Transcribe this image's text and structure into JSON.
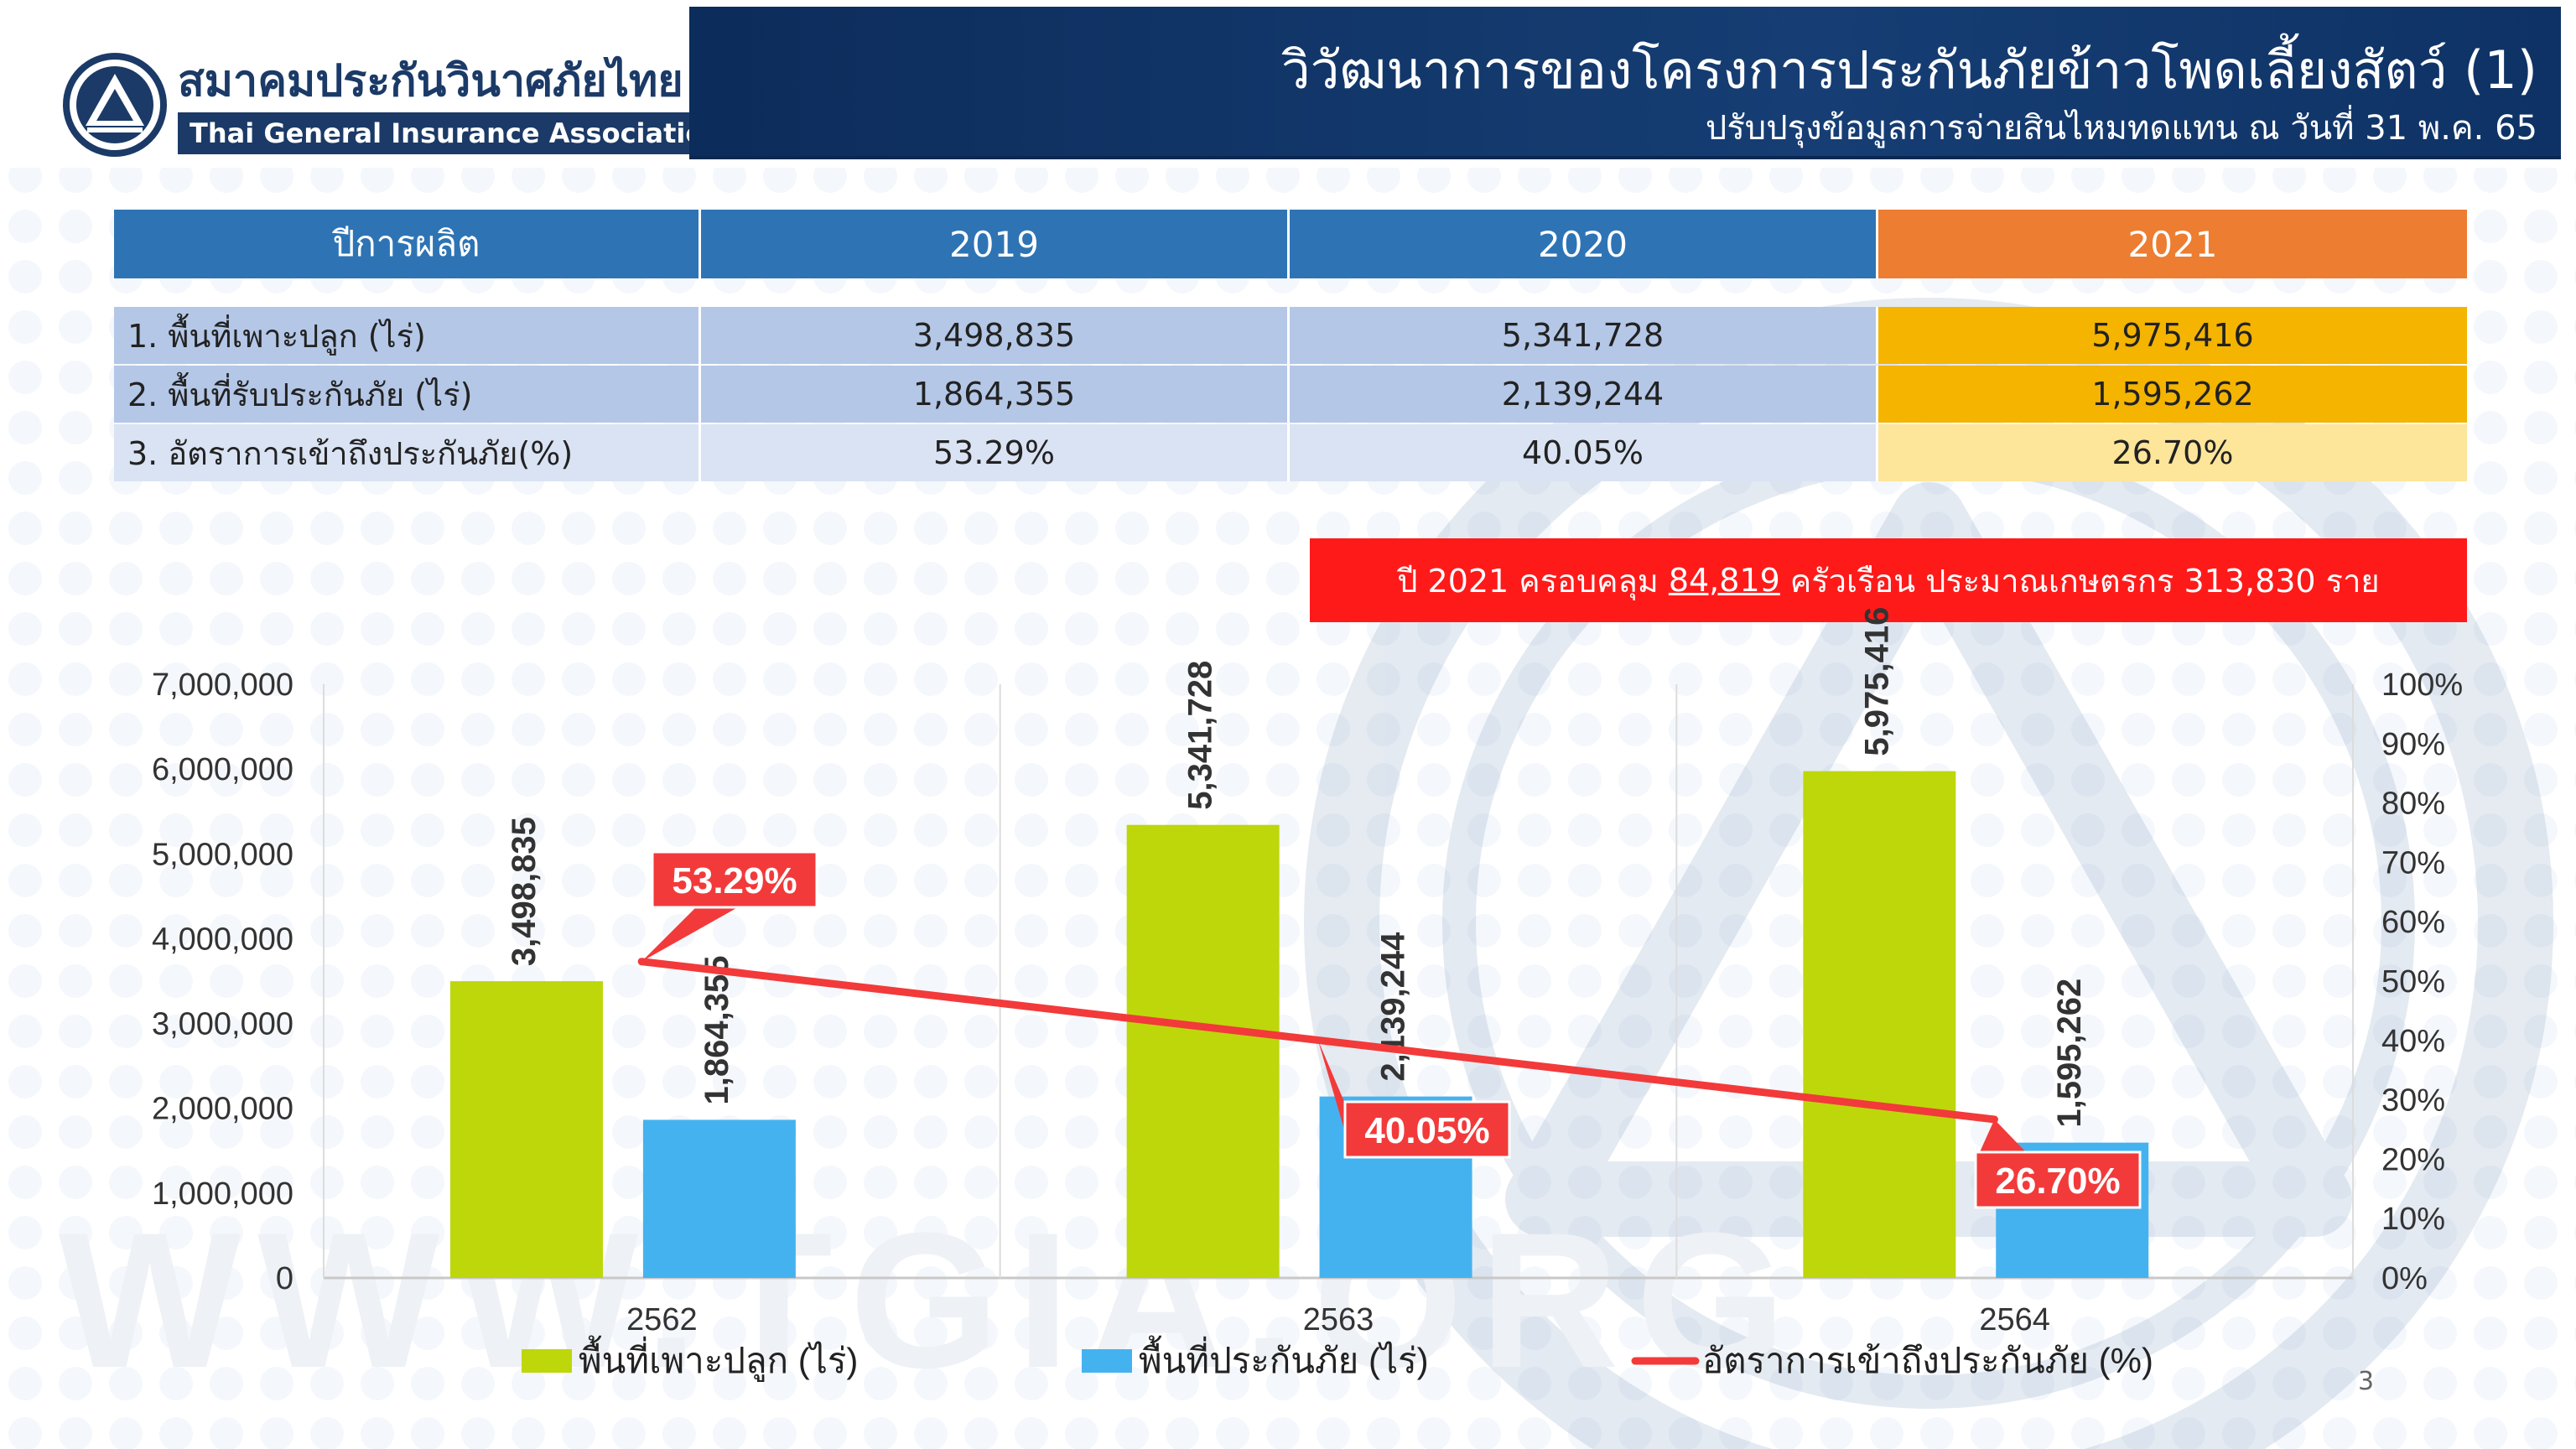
{
  "header": {
    "logo_th": "สมาคมประกันวินาศภัยไทย",
    "logo_en": "Thai General Insurance Association",
    "title": "วิวัฒนาการของโครงการประกันภัยข้าวโพดเลี้ยงสัตว์ (1)",
    "subtitle": "ปรับปรุงข้อมูลการจ่ายสินไหมทดแทน ณ วันที่ 31 พ.ค. 65"
  },
  "table": {
    "header": [
      "ปีการผลิต",
      "2019",
      "2020",
      "2021"
    ],
    "rows": [
      [
        "1. พื้นที่เพาะปลูก (ไร่)",
        "3,498,835",
        "5,341,728",
        "5,975,416"
      ],
      [
        "2. พื้นที่รับประกันภัย (ไร่)",
        "1,864,355",
        "2,139,244",
        "1,595,262"
      ],
      [
        "3. อัตราการเข้าถึงประกันภัย(%)",
        "53.29%",
        "40.05%",
        "26.70%"
      ]
    ]
  },
  "banner": {
    "before": "ปี 2021 ครอบคลุม",
    "households": "84,819",
    "after": "ครัวเรือน ประมาณเกษตรกร 313,830 ราย"
  },
  "colors": {
    "planted": "#bdd70b",
    "insured": "#45b2f0",
    "rate": "#f23a3a",
    "header_blue": "#2e74b5",
    "header_orange": "#ed7d31"
  },
  "chart_data": {
    "type": "bar",
    "categories": [
      "2562",
      "2563",
      "2564"
    ],
    "series": [
      {
        "name": "พื้นที่เพาะปลูก (ไร่)",
        "type": "bar",
        "axis": "left",
        "values": [
          3498835,
          5341728,
          5975416
        ],
        "labels": [
          "3,498,835",
          "5,341,728",
          "5,975,416"
        ]
      },
      {
        "name": "พื้นที่ประกันภัย (ไร่)",
        "type": "bar",
        "axis": "left",
        "values": [
          1864355,
          2139244,
          1595262
        ],
        "labels": [
          "1,864,355",
          "2,139,244",
          "1,595,262"
        ]
      },
      {
        "name": "อัตราการเข้าถึงประกันภัย (%)",
        "type": "line",
        "axis": "right",
        "values": [
          53.29,
          40.05,
          26.7
        ],
        "labels": [
          "53.29%",
          "40.05%",
          "26.70%"
        ]
      }
    ],
    "y_left": {
      "min": 0,
      "max": 7000000,
      "ticks": [
        "0",
        "1,000,000",
        "2,000,000",
        "3,000,000",
        "4,000,000",
        "5,000,000",
        "6,000,000",
        "7,000,000"
      ]
    },
    "y_right": {
      "min": 0,
      "max": 100,
      "ticks": [
        "0%",
        "10%",
        "20%",
        "30%",
        "40%",
        "50%",
        "60%",
        "70%",
        "80%",
        "90%",
        "100%"
      ]
    },
    "legend_position": "bottom",
    "grid": false
  },
  "page_number": "3"
}
